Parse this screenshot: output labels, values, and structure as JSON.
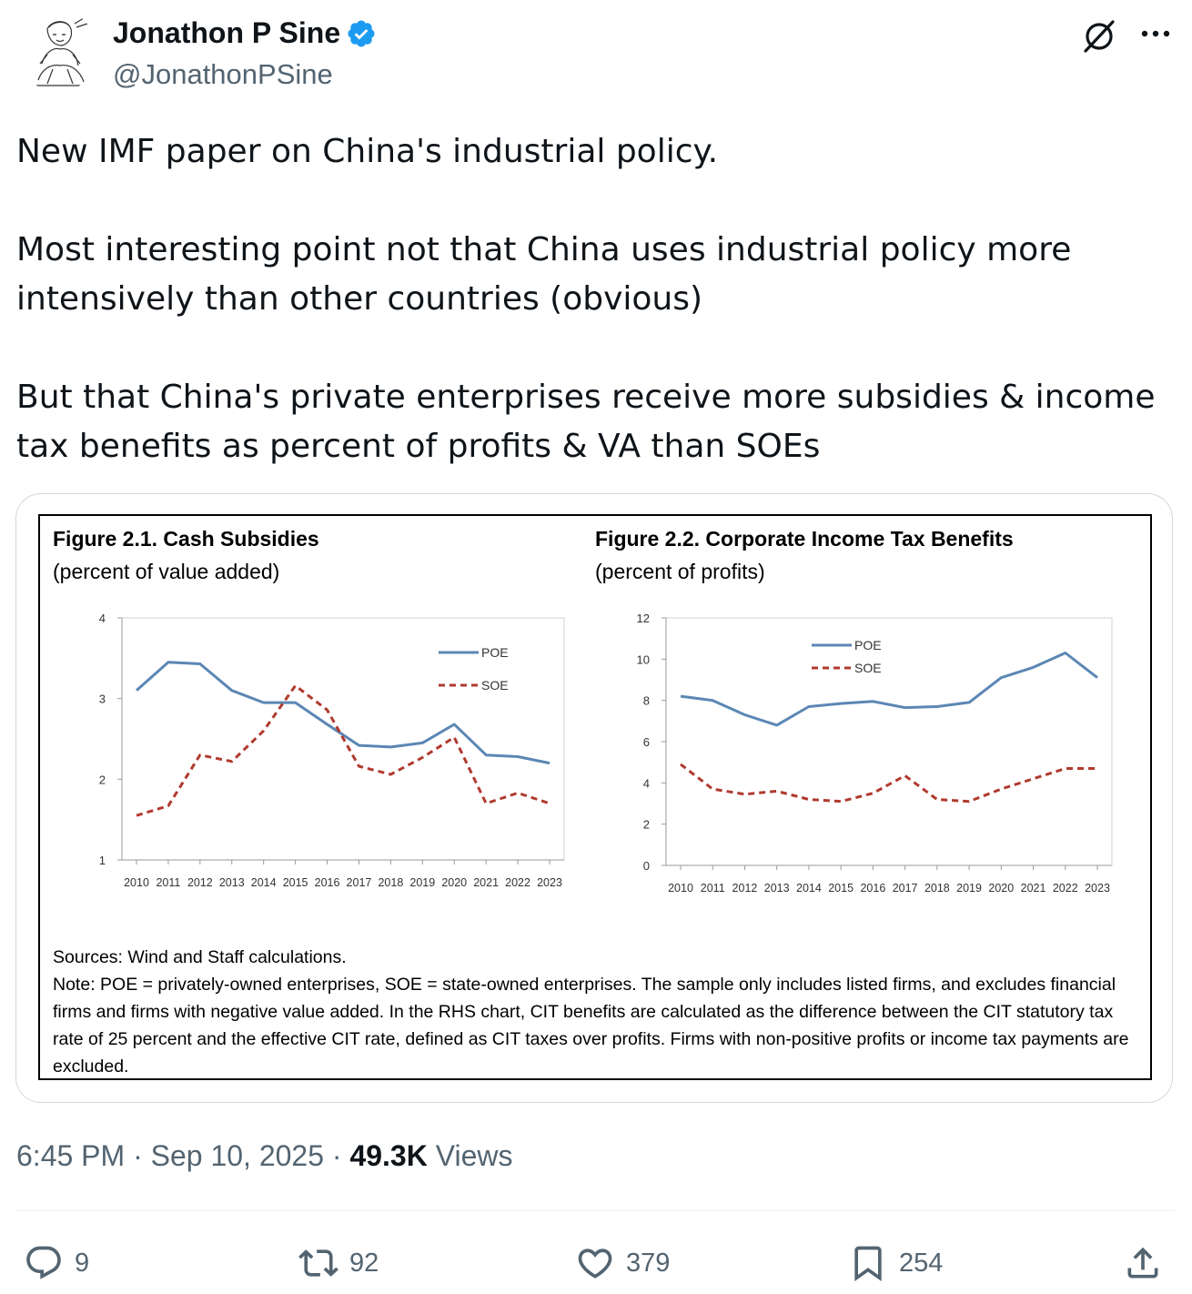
{
  "user": {
    "display_name": "Jonathon P Sine",
    "handle": "@JonathonPSine",
    "verified_icon": "verified-badge-icon",
    "avatar": "sketch-portrait-avatar"
  },
  "tweet": {
    "paragraphs": [
      "New IMF paper on China's industrial policy.",
      "Most interesting point not that China uses industrial policy more intensively than other countries (obvious)",
      "But that China's private enterprises receive more subsidies & income tax benefits as percent of profits & VA than SOEs"
    ]
  },
  "figure": {
    "left_title": "Figure 2.1. Cash Subsidies",
    "left_subtitle": "(percent of value added)",
    "right_title": "Figure 2.2. Corporate Income Tax Benefits",
    "right_subtitle": "(percent of profits)",
    "sources": "Sources: Wind and Staff calculations.",
    "note": "Note: POE = privately-owned enterprises, SOE = state-owned enterprises. The sample only includes listed firms, and excludes financial firms and firms with negative value added. In the RHS chart, CIT benefits are calculated as the difference between the CIT statutory tax rate of 25 percent and the effective CIT rate, defined as CIT taxes over profits. Firms with non-positive profits or income tax payments are excluded."
  },
  "chart_data": [
    {
      "type": "line",
      "title": "Figure 2.1. Cash Subsidies",
      "subtitle": "(percent of value added)",
      "x": [
        "2010",
        "2011",
        "2012",
        "2013",
        "2014",
        "2015",
        "2016",
        "2017",
        "2018",
        "2019",
        "2020",
        "2021",
        "2022",
        "2023"
      ],
      "ylim": [
        1,
        4
      ],
      "yticks": [
        1,
        2,
        3,
        4
      ],
      "legend_position": "top-right",
      "series": [
        {
          "name": "POE",
          "style": "solid",
          "color": "#5b87b4",
          "values": [
            3.1,
            3.45,
            3.43,
            3.1,
            2.95,
            2.95,
            2.68,
            2.42,
            2.4,
            2.45,
            2.68,
            2.3,
            2.28,
            2.2
          ]
        },
        {
          "name": "SOE",
          "style": "dashed",
          "color": "#b03a2e",
          "values": [
            1.55,
            1.67,
            2.3,
            2.22,
            2.6,
            3.16,
            2.86,
            2.16,
            2.06,
            2.27,
            2.52,
            1.7,
            1.83,
            1.7
          ]
        }
      ]
    },
    {
      "type": "line",
      "title": "Figure 2.2. Corporate Income Tax Benefits",
      "subtitle": "(percent of profits)",
      "x": [
        "2010",
        "2011",
        "2012",
        "2013",
        "2014",
        "2015",
        "2016",
        "2017",
        "2018",
        "2019",
        "2020",
        "2021",
        "2022",
        "2023"
      ],
      "ylim": [
        0,
        12
      ],
      "yticks": [
        0,
        2,
        4,
        6,
        8,
        10,
        12
      ],
      "legend_position": "top-left",
      "series": [
        {
          "name": "POE",
          "style": "solid",
          "color": "#5b87b4",
          "values": [
            8.2,
            8.0,
            7.3,
            6.8,
            7.7,
            7.85,
            7.95,
            7.65,
            7.7,
            7.9,
            9.1,
            9.6,
            10.3,
            9.1
          ]
        },
        {
          "name": "SOE",
          "style": "dashed",
          "color": "#b03a2e",
          "values": [
            4.9,
            3.7,
            3.45,
            3.6,
            3.2,
            3.1,
            3.5,
            4.35,
            3.2,
            3.1,
            3.7,
            4.2,
            4.7,
            4.7
          ]
        }
      ]
    }
  ],
  "timestamp": {
    "time": "6:45 PM",
    "sep": "·",
    "date": "Sep 10, 2025",
    "views_count": "49.3K",
    "views_label": "Views"
  },
  "actions": {
    "replies": "9",
    "reposts": "92",
    "likes": "379",
    "bookmarks": "254"
  },
  "colors": {
    "text_primary": "#0f1419",
    "text_secondary": "#536471",
    "verified": "#1d9bf0",
    "poe_line": "#5b87b4",
    "soe_line": "#b03a2e"
  }
}
